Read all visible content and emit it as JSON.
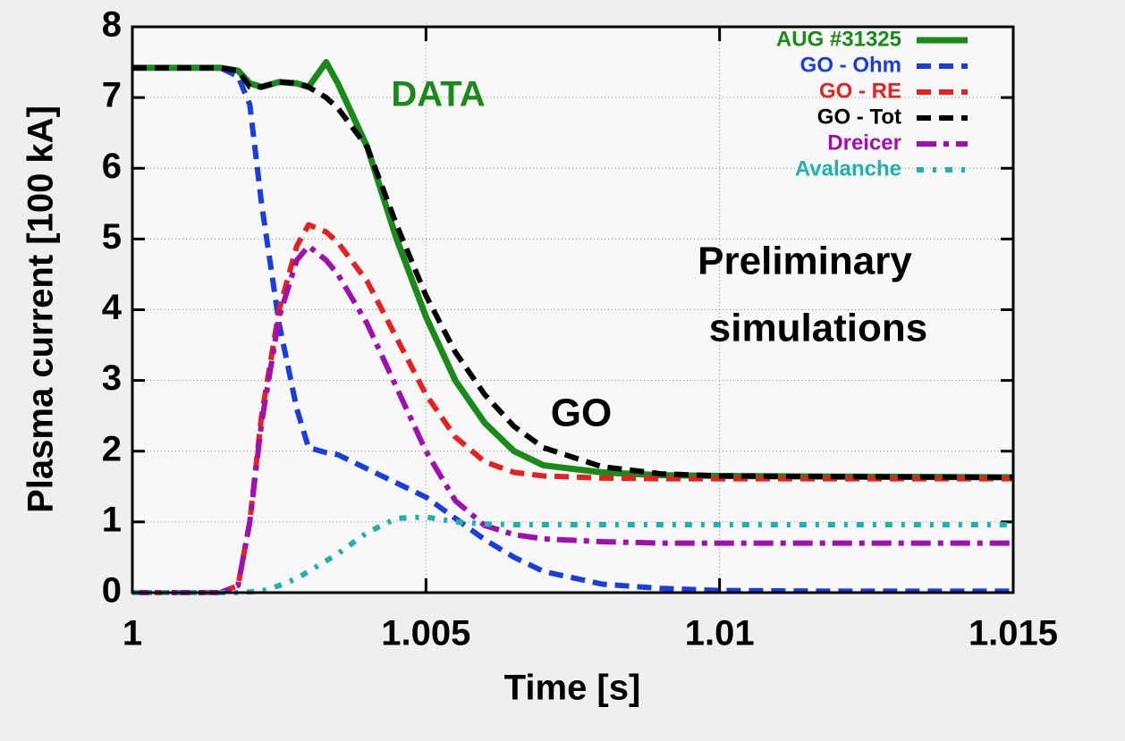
{
  "chart_data": {
    "type": "line",
    "xlabel": "Time [s]",
    "ylabel": "Plasma current [100 kA]",
    "xlim": [
      1,
      1.015
    ],
    "xticks": [
      1,
      1.005,
      1.01,
      1.015
    ],
    "ylim": [
      0,
      8
    ],
    "yticks": [
      0,
      1,
      2,
      3,
      4,
      5,
      6,
      7,
      8
    ],
    "grid": true,
    "legend": "upper right",
    "annotations": [
      {
        "text": "DATA",
        "color": "#1a8a1a"
      },
      {
        "text": "GO",
        "color": "#000000"
      },
      {
        "text": "Preliminary",
        "color": "#000000"
      },
      {
        "text": "simulations",
        "color": "#000000"
      }
    ],
    "x": [
      1.0,
      1.001,
      1.0015,
      1.0018,
      1.002,
      1.0022,
      1.0025,
      1.0028,
      1.003,
      1.0033,
      1.0035,
      1.004,
      1.0045,
      1.005,
      1.0055,
      1.006,
      1.0065,
      1.007,
      1.008,
      1.009,
      1.01,
      1.012,
      1.015
    ],
    "series": [
      {
        "name": "AUG #31325",
        "color": "#1a8a1a",
        "linestyle": "solid",
        "values": [
          7.42,
          7.42,
          7.42,
          7.38,
          7.2,
          7.15,
          7.22,
          7.2,
          7.15,
          7.5,
          7.2,
          6.3,
          5.0,
          3.9,
          3.0,
          2.4,
          2.0,
          1.8,
          1.7,
          1.66,
          1.65,
          1.64,
          1.63
        ]
      },
      {
        "name": "GO - Ohm",
        "color": "#1a3de0",
        "linestyle": "dashed",
        "values": [
          7.42,
          7.42,
          7.42,
          7.3,
          6.9,
          5.5,
          3.8,
          2.6,
          2.05,
          1.98,
          1.95,
          1.75,
          1.55,
          1.35,
          1.05,
          0.75,
          0.5,
          0.3,
          0.12,
          0.06,
          0.03,
          0.02,
          0.02
        ]
      },
      {
        "name": "GO - RE",
        "color": "#e82020",
        "linestyle": "dashed",
        "values": [
          0,
          0,
          0,
          0.1,
          1.0,
          2.5,
          4.0,
          4.9,
          5.2,
          5.1,
          4.95,
          4.4,
          3.6,
          2.8,
          2.2,
          1.85,
          1.7,
          1.65,
          1.62,
          1.61,
          1.61,
          1.61,
          1.61
        ]
      },
      {
        "name": "GO - Tot",
        "color": "#000000",
        "linestyle": "dashed",
        "values": [
          7.42,
          7.42,
          7.42,
          7.38,
          7.15,
          7.15,
          7.22,
          7.2,
          7.15,
          7.0,
          6.85,
          6.3,
          5.2,
          4.2,
          3.4,
          2.8,
          2.35,
          2.05,
          1.78,
          1.68,
          1.65,
          1.64,
          1.63
        ]
      },
      {
        "name": "Dreicer",
        "color": "#a010b0",
        "linestyle": "dashdot",
        "values": [
          0,
          0,
          0,
          0.1,
          1.0,
          2.4,
          3.9,
          4.7,
          4.9,
          4.7,
          4.5,
          3.8,
          2.9,
          2.0,
          1.3,
          0.95,
          0.82,
          0.76,
          0.72,
          0.7,
          0.7,
          0.7,
          0.7
        ]
      },
      {
        "name": "Avalanche",
        "color": "#20b0b0",
        "linestyle": "dashdotdot",
        "values": [
          0,
          0,
          0,
          0,
          0.01,
          0.02,
          0.1,
          0.2,
          0.3,
          0.45,
          0.55,
          0.85,
          1.05,
          1.07,
          1.0,
          0.97,
          0.96,
          0.96,
          0.96,
          0.96,
          0.96,
          0.96,
          0.96
        ]
      }
    ]
  }
}
